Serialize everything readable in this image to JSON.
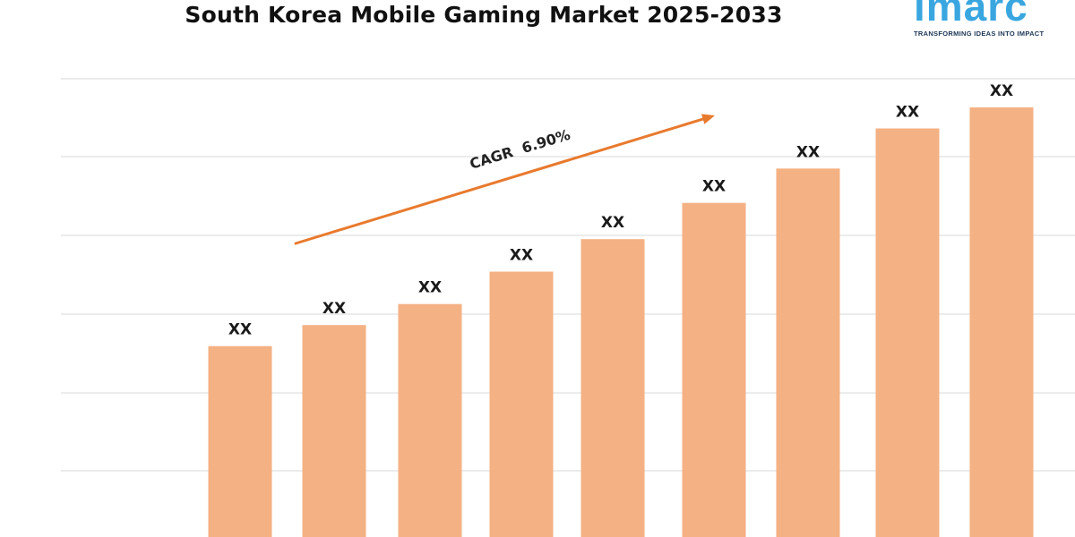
{
  "title": "South Korea Mobile Gaming Market 2025-2033",
  "brand": {
    "logo_text": "imarc",
    "tagline": "TRANSFORMING IDEAS INTO IMPACT"
  },
  "colors": {
    "bar": "#f4b183",
    "arrow": "#e87a2e",
    "grid": "#d9d9d9",
    "label": "#1a1a1a",
    "brand": "#3aa6e0"
  },
  "chart_data": {
    "type": "bar",
    "title": "South Korea Mobile Gaming Market 2025-2033",
    "values": [
      100,
      111,
      122,
      139,
      156,
      175,
      193,
      214,
      225
    ],
    "data_labels": [
      "XX",
      "XX",
      "XX",
      "XX",
      "XX",
      "XX",
      "XX",
      "XX",
      "XX"
    ],
    "ylim": [
      0,
      230
    ],
    "grid": true,
    "annotation": {
      "text": "CAGR  6.90%",
      "type": "arrow"
    }
  }
}
